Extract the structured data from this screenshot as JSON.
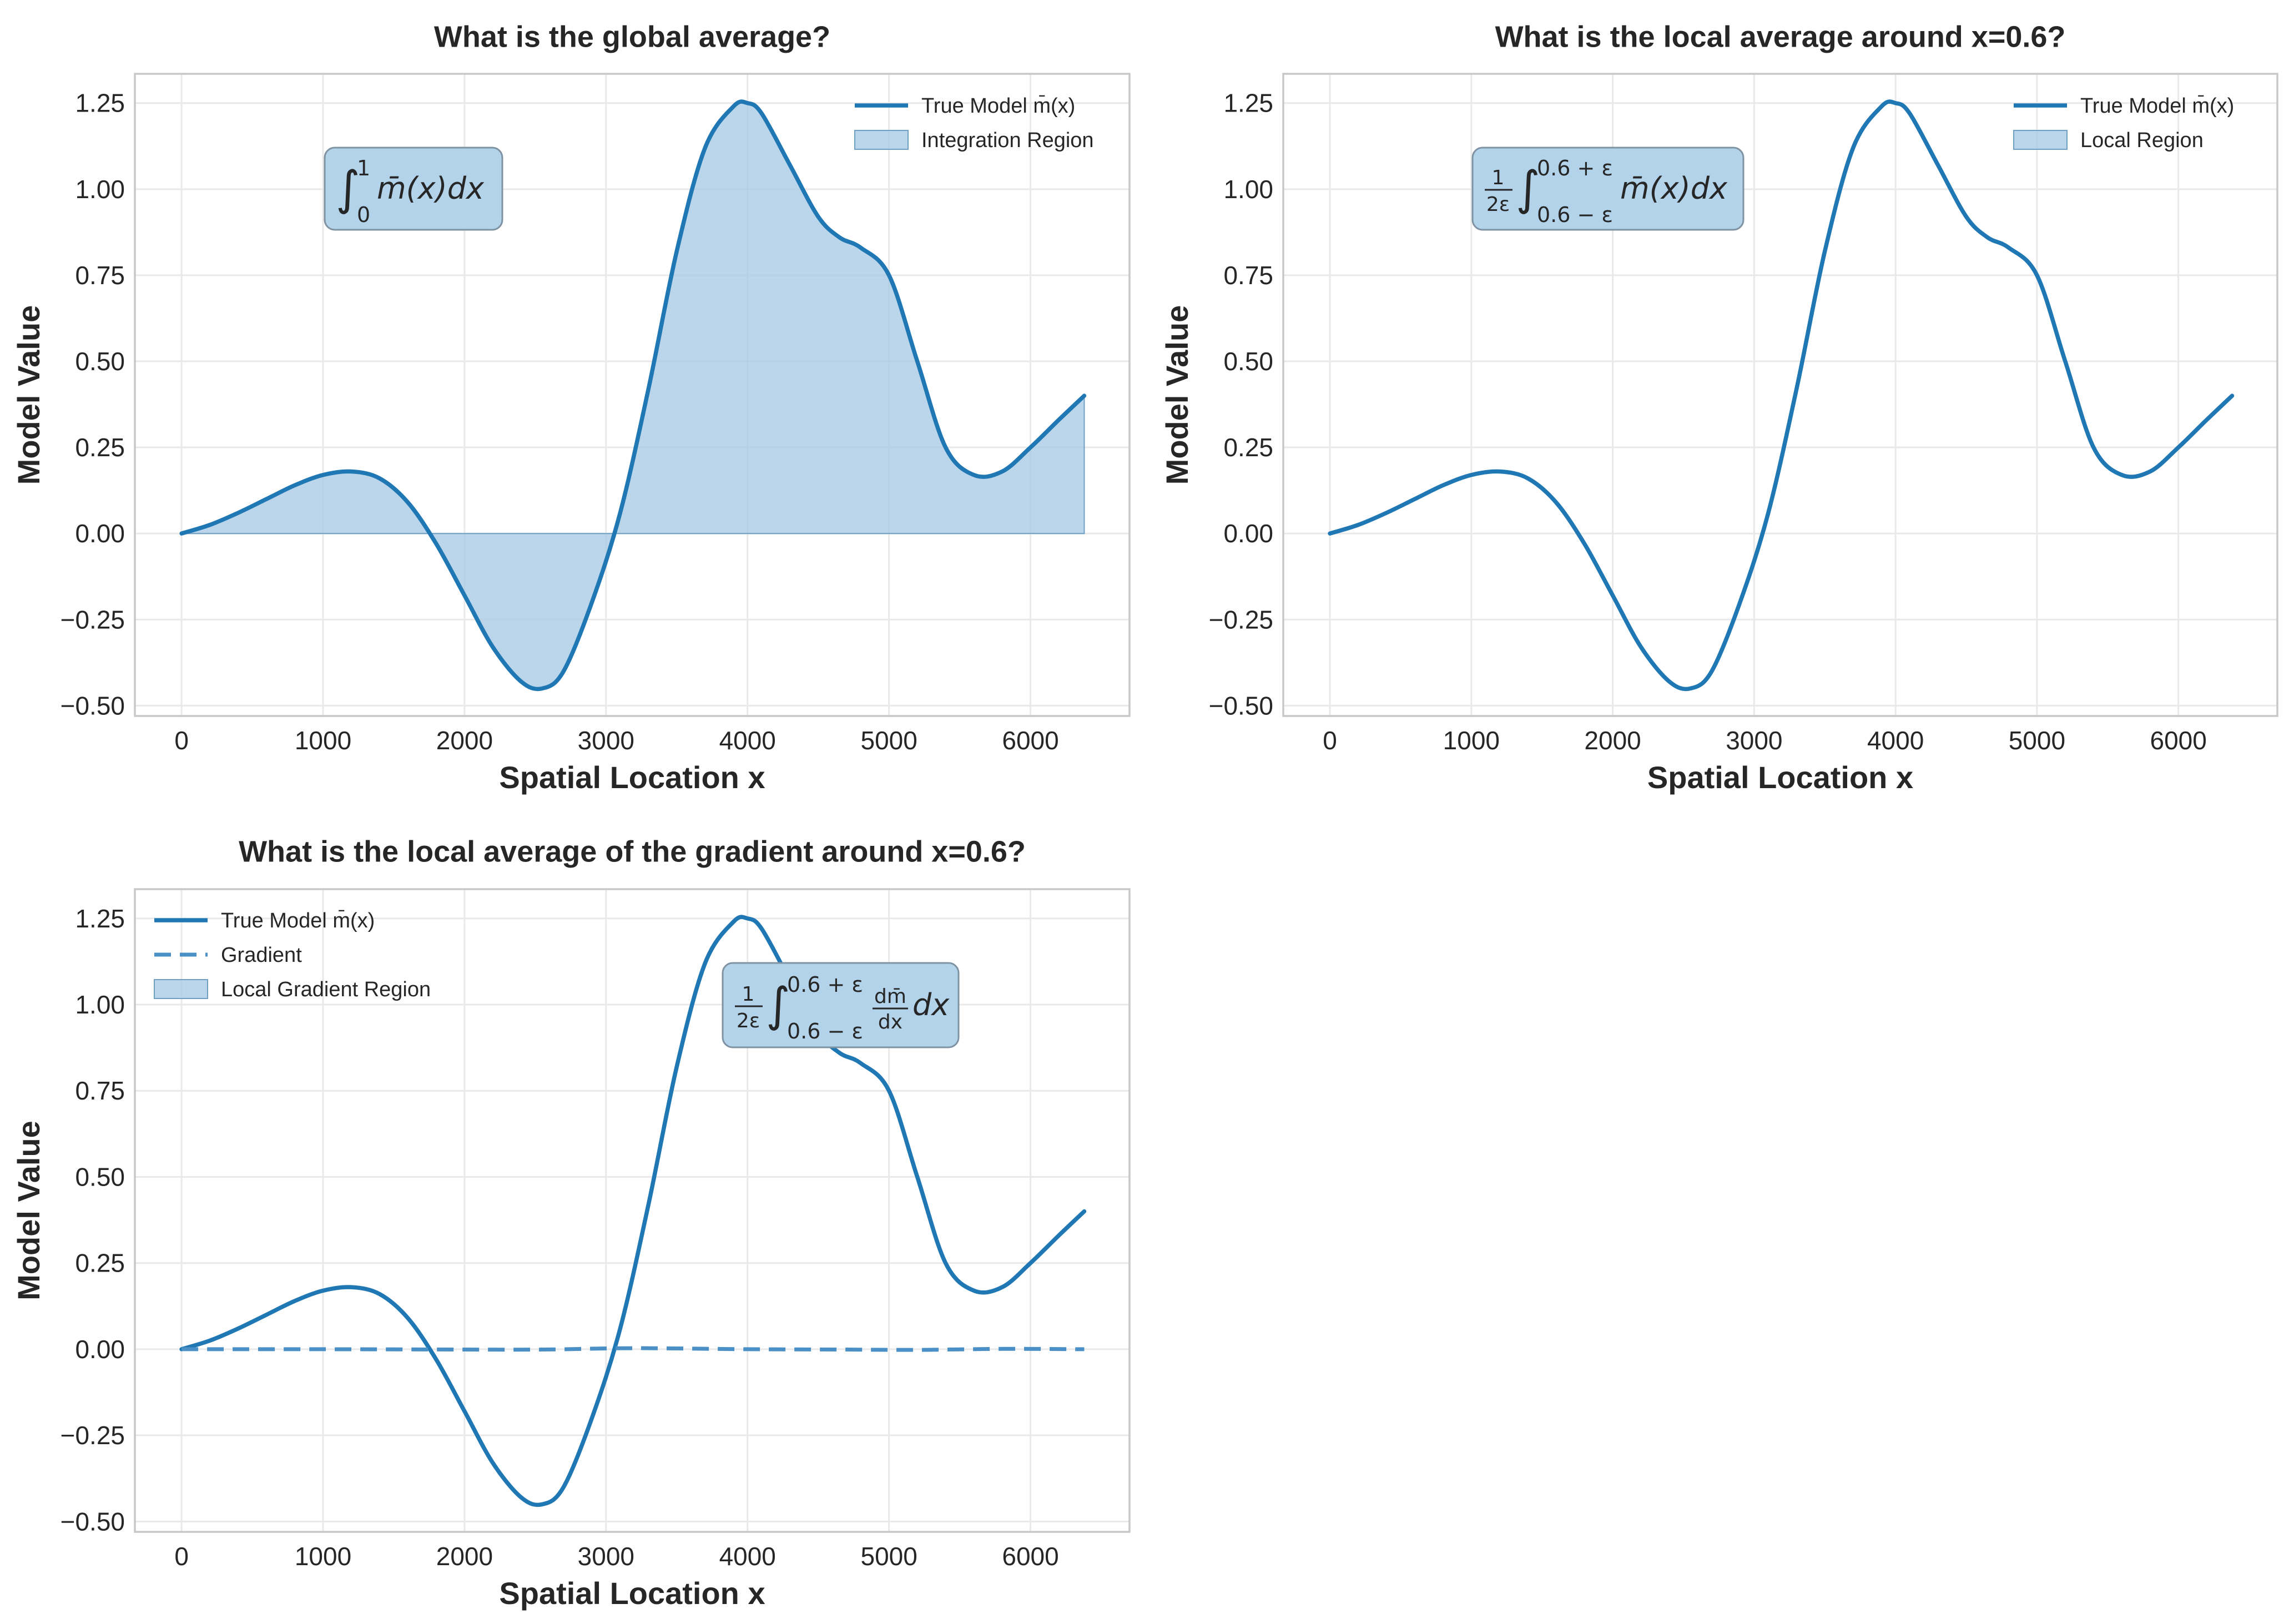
{
  "colors": {
    "line": "#1f77b4",
    "gradient_line": "#4a90c6",
    "fill": "#a8cbe4",
    "grid": "#e9e9e9",
    "frame": "#c8c8c8",
    "formula_box": "#b3d3ea",
    "formula_border": "#7f93a3",
    "text": "#262626"
  },
  "chart_data": [
    {
      "type": "area",
      "title": "What is the global average?",
      "xlabel": "Spatial Location x",
      "ylabel": "Model Value",
      "xlim": [
        -330,
        6700
      ],
      "ylim": [
        -0.53,
        1.335
      ],
      "xticks": [
        0,
        1000,
        2000,
        3000,
        4000,
        5000,
        6000
      ],
      "xtick_labels": [
        "0",
        "1000",
        "2000",
        "3000",
        "4000",
        "5000",
        "6000"
      ],
      "yticks": [
        -0.5,
        -0.25,
        0.0,
        0.25,
        0.5,
        0.75,
        1.0,
        1.25
      ],
      "ytick_labels": [
        "−0.50",
        "−0.25",
        "0.00",
        "0.25",
        "0.50",
        "0.75",
        "1.00",
        "1.25"
      ],
      "grid": true,
      "legend_position": "top-right",
      "legend": [
        {
          "label": "True Model m̄(x)",
          "kind": "line"
        },
        {
          "label": "Integration Region",
          "kind": "patch"
        }
      ],
      "annotation": {
        "main": "∫",
        "upper": "1",
        "lower": "0",
        "body": "m̄(x)dx"
      },
      "series": [
        {
          "name": "True Model m̄(x)",
          "style": "solid",
          "fill": true,
          "x": [
            0,
            200,
            400,
            600,
            800,
            1000,
            1200,
            1400,
            1600,
            1800,
            2000,
            2200,
            2400,
            2550,
            2700,
            2900,
            3100,
            3300,
            3500,
            3700,
            3900,
            4000,
            4100,
            4300,
            4500,
            4650,
            4800,
            5000,
            5200,
            5400,
            5600,
            5800,
            6000,
            6200,
            6380
          ],
          "y": [
            0.0,
            0.025,
            0.06,
            0.1,
            0.14,
            0.17,
            0.18,
            0.16,
            0.09,
            -0.03,
            -0.18,
            -0.33,
            -0.43,
            -0.45,
            -0.4,
            -0.2,
            0.06,
            0.42,
            0.82,
            1.12,
            1.24,
            1.25,
            1.22,
            1.07,
            0.92,
            0.86,
            0.83,
            0.75,
            0.5,
            0.25,
            0.17,
            0.18,
            0.25,
            0.33,
            0.4
          ]
        }
      ]
    },
    {
      "type": "line",
      "title": "What is the local average around x=0.6?",
      "xlabel": "Spatial Location x",
      "ylabel": "Model Value",
      "xlim": [
        -330,
        6700
      ],
      "ylim": [
        -0.53,
        1.335
      ],
      "xticks": [
        0,
        1000,
        2000,
        3000,
        4000,
        5000,
        6000
      ],
      "xtick_labels": [
        "0",
        "1000",
        "2000",
        "3000",
        "4000",
        "5000",
        "6000"
      ],
      "yticks": [
        -0.5,
        -0.25,
        0.0,
        0.25,
        0.5,
        0.75,
        1.0,
        1.25
      ],
      "ytick_labels": [
        "−0.50",
        "−0.25",
        "0.00",
        "0.25",
        "0.50",
        "0.75",
        "1.00",
        "1.25"
      ],
      "grid": true,
      "legend_position": "top-right",
      "legend": [
        {
          "label": "True Model m̄(x)",
          "kind": "line"
        },
        {
          "label": "Local Region",
          "kind": "patch"
        }
      ],
      "annotation": {
        "frac_num": "1",
        "frac_den": "2ε",
        "main": "∫",
        "upper": "0.6 + ε",
        "lower": "0.6 − ε",
        "body": "m̄(x)dx"
      },
      "series": [
        {
          "name": "True Model m̄(x)",
          "style": "solid",
          "fill": false,
          "x": [
            0,
            200,
            400,
            600,
            800,
            1000,
            1200,
            1400,
            1600,
            1800,
            2000,
            2200,
            2400,
            2550,
            2700,
            2900,
            3100,
            3300,
            3500,
            3700,
            3900,
            4000,
            4100,
            4300,
            4500,
            4650,
            4800,
            5000,
            5200,
            5400,
            5600,
            5800,
            6000,
            6200,
            6380
          ],
          "y": [
            0.0,
            0.025,
            0.06,
            0.1,
            0.14,
            0.17,
            0.18,
            0.16,
            0.09,
            -0.03,
            -0.18,
            -0.33,
            -0.43,
            -0.45,
            -0.4,
            -0.2,
            0.06,
            0.42,
            0.82,
            1.12,
            1.24,
            1.25,
            1.22,
            1.07,
            0.92,
            0.86,
            0.83,
            0.75,
            0.5,
            0.25,
            0.17,
            0.18,
            0.25,
            0.33,
            0.4
          ]
        }
      ]
    },
    {
      "type": "line",
      "title": "What is the local average of the gradient around x=0.6?",
      "xlabel": "Spatial Location x",
      "ylabel": "Model Value",
      "xlim": [
        -330,
        6700
      ],
      "ylim": [
        -0.53,
        1.335
      ],
      "xticks": [
        0,
        1000,
        2000,
        3000,
        4000,
        5000,
        6000
      ],
      "xtick_labels": [
        "0",
        "1000",
        "2000",
        "3000",
        "4000",
        "5000",
        "6000"
      ],
      "yticks": [
        -0.5,
        -0.25,
        0.0,
        0.25,
        0.5,
        0.75,
        1.0,
        1.25
      ],
      "ytick_labels": [
        "−0.50",
        "−0.25",
        "0.00",
        "0.25",
        "0.50",
        "0.75",
        "1.00",
        "1.25"
      ],
      "grid": true,
      "legend_position": "top-left",
      "legend": [
        {
          "label": "True Model m̄(x)",
          "kind": "line"
        },
        {
          "label": "Gradient",
          "kind": "dashed"
        },
        {
          "label": "Local Gradient Region",
          "kind": "patch"
        }
      ],
      "annotation": {
        "frac_num": "1",
        "frac_den": "2ε",
        "main": "∫",
        "upper": "0.6 + ε",
        "lower": "0.6 − ε",
        "dfrac_num": "dm̄",
        "dfrac_den": "dx",
        "body": "dx"
      },
      "series": [
        {
          "name": "True Model m̄(x)",
          "style": "solid",
          "fill": false,
          "x": [
            0,
            200,
            400,
            600,
            800,
            1000,
            1200,
            1400,
            1600,
            1800,
            2000,
            2200,
            2400,
            2550,
            2700,
            2900,
            3100,
            3300,
            3500,
            3700,
            3900,
            4000,
            4100,
            4300,
            4500,
            4650,
            4800,
            5000,
            5200,
            5400,
            5600,
            5800,
            6000,
            6200,
            6380
          ],
          "y": [
            0.0,
            0.025,
            0.06,
            0.1,
            0.14,
            0.17,
            0.18,
            0.16,
            0.09,
            -0.03,
            -0.18,
            -0.33,
            -0.43,
            -0.45,
            -0.4,
            -0.2,
            0.06,
            0.42,
            0.82,
            1.12,
            1.24,
            1.25,
            1.22,
            1.07,
            0.92,
            0.86,
            0.83,
            0.75,
            0.5,
            0.25,
            0.17,
            0.18,
            0.25,
            0.33,
            0.4
          ]
        },
        {
          "name": "Gradient",
          "style": "dashed",
          "fill": false,
          "x": [
            0,
            1000,
            2000,
            2550,
            3200,
            4000,
            4700,
            5200,
            5800,
            6380
          ],
          "y": [
            0.0,
            0.0,
            -0.001,
            -0.001,
            0.003,
            0.0,
            -0.001,
            -0.002,
            0.001,
            0.0
          ]
        }
      ]
    }
  ]
}
